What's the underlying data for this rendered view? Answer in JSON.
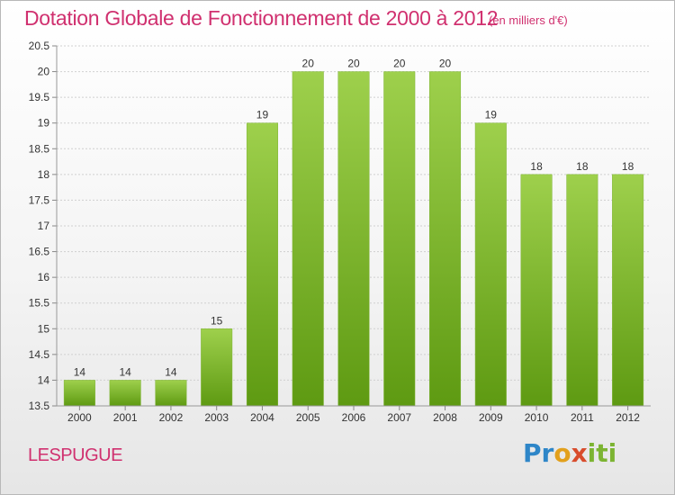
{
  "header": {
    "title": "Dotation Globale de Fonctionnement de 2000 à 2012",
    "unit": "(en milliers d'€)"
  },
  "footer": {
    "commune": "LESPUGUE",
    "logo": {
      "p1": "Pr",
      "p2": "o",
      "p3": "x",
      "p4": "iti"
    }
  },
  "colors": {
    "title": "#d0306f",
    "bar_top": "#9ed04c",
    "bar_bottom": "#5e9a12",
    "grid": "#d0d0d0",
    "axis_text": "#333333"
  },
  "chart_data": {
    "type": "bar",
    "categories": [
      "2000",
      "2001",
      "2002",
      "2003",
      "2004",
      "2005",
      "2006",
      "2007",
      "2008",
      "2009",
      "2010",
      "2011",
      "2012"
    ],
    "values": [
      14,
      14,
      14,
      15,
      19,
      20,
      20,
      20,
      20,
      19,
      18,
      18,
      18
    ],
    "data_labels": [
      "14",
      "14",
      "14",
      "15",
      "19",
      "20",
      "20",
      "20",
      "20",
      "19",
      "18",
      "18",
      "18"
    ],
    "yticks": [
      "13.5",
      "14",
      "14.5",
      "15",
      "15.5",
      "16",
      "16.5",
      "17",
      "17.5",
      "18",
      "18.5",
      "19",
      "19.5",
      "20",
      "20.5"
    ],
    "ylim": [
      13.5,
      20.5
    ],
    "grid": true,
    "legend": "none"
  }
}
